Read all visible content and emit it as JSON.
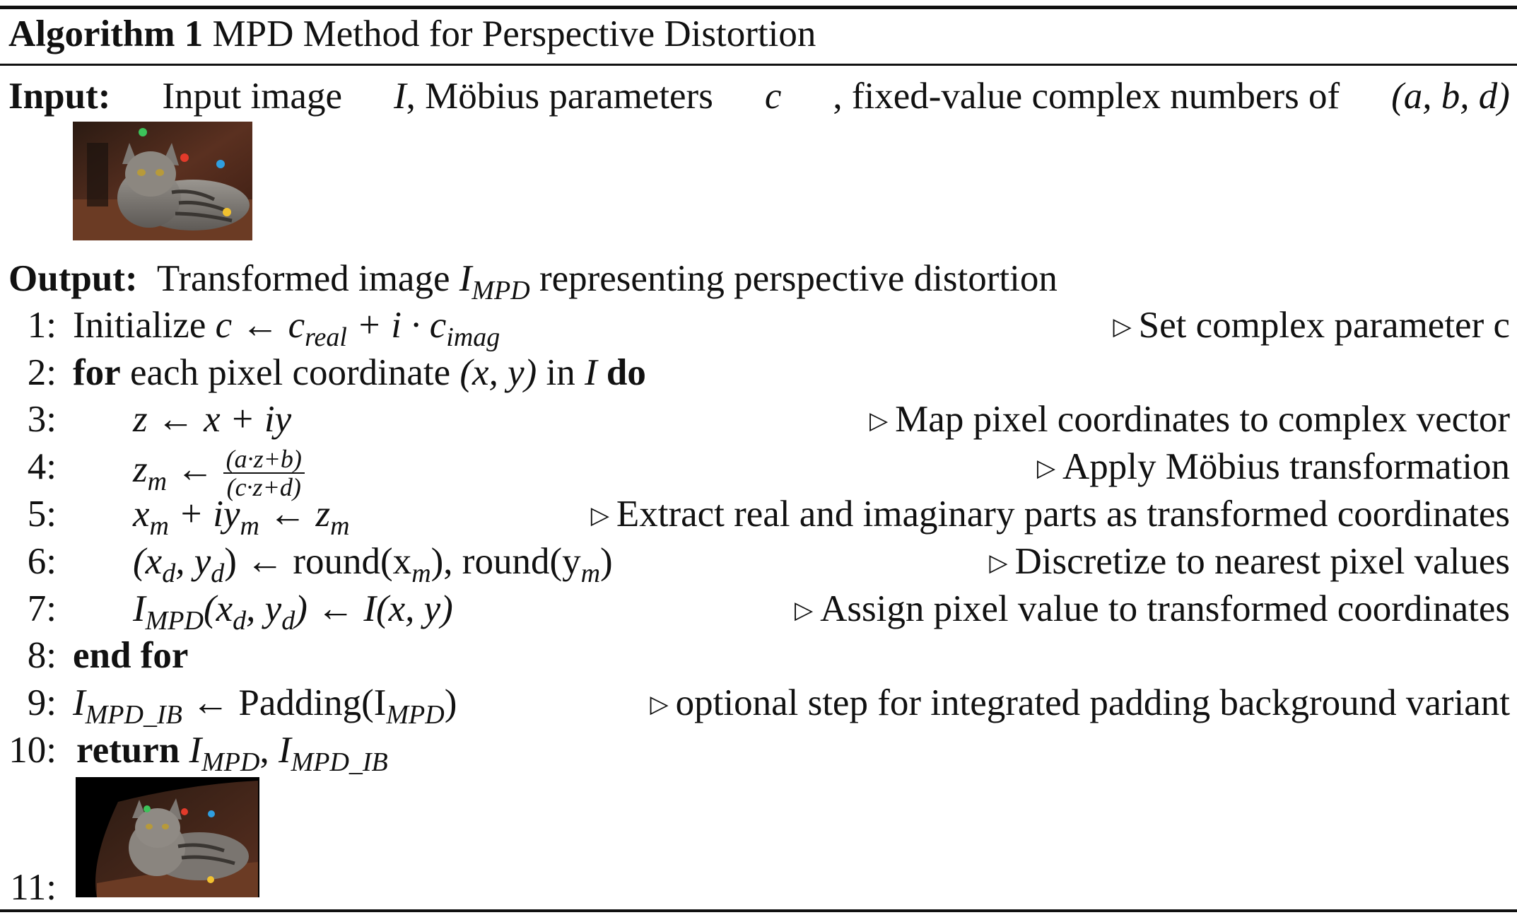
{
  "algorithm": {
    "label": "Algorithm 1",
    "title": "MPD Method for Perspective Distortion"
  },
  "input": {
    "label": "Input:",
    "text_a": "Input image",
    "var_I": "I",
    "text_b": ", Möbius parameters",
    "var_c": "c",
    "text_c": ", fixed-value complex numbers of",
    "tuple": "(a, b, d)"
  },
  "output": {
    "label": "Output:",
    "text_a": "Transformed image",
    "var": "I",
    "sub": "MPD",
    "text_b": "representing perspective distortion"
  },
  "steps": [
    {
      "num": "1:",
      "comment": "Set complex parameter c"
    },
    {
      "num": "2:",
      "comment": ""
    },
    {
      "num": "3:",
      "comment": "Map pixel coordinates to complex vector"
    },
    {
      "num": "4:",
      "comment": "Apply Möbius transformation"
    },
    {
      "num": "5:",
      "comment": "Extract real and imaginary parts as transformed coordinates"
    },
    {
      "num": "6:",
      "comment": "Discretize to nearest pixel values"
    },
    {
      "num": "7:",
      "comment": "Assign pixel value to transformed coordinates"
    },
    {
      "num": "8:",
      "comment": ""
    },
    {
      "num": "9:",
      "comment": "optional step for integrated padding background variant"
    },
    {
      "num": "10:",
      "comment": ""
    },
    {
      "num": "11:",
      "comment": ""
    }
  ],
  "code": {
    "s1_kw": "Initialize",
    "s1_c": "c",
    "s1_arrow": "←",
    "s1_creal": "c",
    "s1_real_sub": "real",
    "s1_plus": "+ i ·",
    "s1_cimag": "c",
    "s1_imag_sub": "imag",
    "s2_for": "for",
    "s2_text": "each pixel coordinate",
    "s2_xy": "(x, y)",
    "s2_in": "in",
    "s2_I": "I",
    "s2_do": "do",
    "s3": "z ← x + iy",
    "s4_lhs": "z",
    "s4_sub": "m",
    "s4_arrow": "←",
    "s4_num": "(a·z+b)",
    "s4_den": "(c·z+d)",
    "s5_a": "x",
    "s5_b": "+ iy",
    "s5_c": "← z",
    "s5_sub": "m",
    "s6_lhs": "(x",
    "s6_d": "d",
    "s6_mid": ", y",
    "s6_close": ")",
    "s6_arrow": "←",
    "s6_round1": "round(x",
    "s6_round2": "), round(y",
    "s6_m": "m",
    "s7_I": "I",
    "s7_sub": "MPD",
    "s7_args": "(x",
    "s7_rhs": ") ← I(x, y)",
    "s8": "end for",
    "s9_I": "I",
    "s9_sub": "MPD_IB",
    "s9_rhs": "← Padding(I",
    "s9_close": ")",
    "s10_kw": "return",
    "s10_I": "I",
    "s10_sub": "MPD",
    "s10_sub2": "MPD_IB"
  },
  "images": {
    "input_thumb": "cat-photo-with-keypoints",
    "output_thumb": "distorted-cat-photo-with-keypoints"
  },
  "colors": {
    "rule": "#111111",
    "kp_green": "#3cc35a",
    "kp_red": "#e23a2a",
    "kp_blue": "#2f9fe0",
    "kp_yellow": "#f2c230"
  }
}
